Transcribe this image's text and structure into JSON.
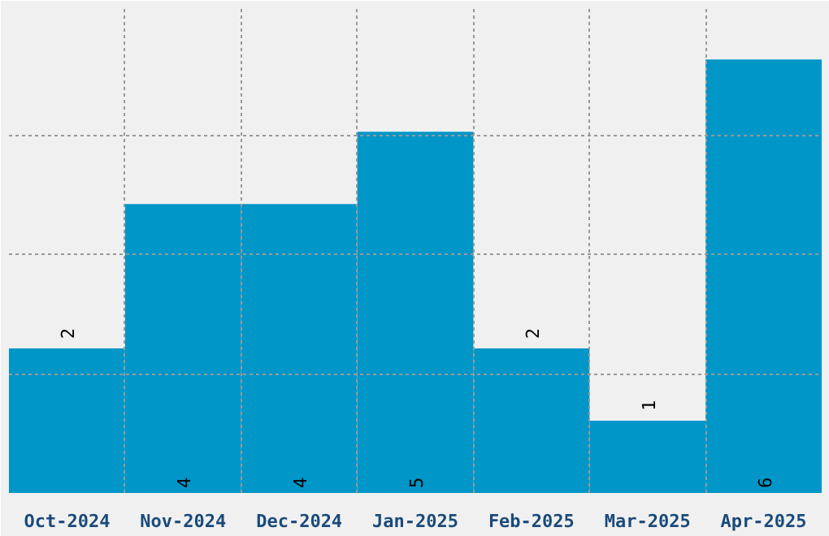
{
  "chart_data": {
    "type": "bar",
    "categories": [
      "Oct-2024",
      "Nov-2024",
      "Dec-2024",
      "Jan-2025",
      "Feb-2025",
      "Mar-2025",
      "Apr-2025"
    ],
    "values": [
      2,
      4,
      4,
      5,
      2,
      1,
      6
    ],
    "color": "#0096c8",
    "ylim": [
      0,
      6.7
    ],
    "yticks": [
      {
        "value": 1.65,
        "label": null
      },
      {
        "value": 3.3,
        "label": null
      },
      {
        "value": 4.95,
        "label": null
      }
    ],
    "tick_labels": "x",
    "grid": true,
    "data_labels": true
  }
}
